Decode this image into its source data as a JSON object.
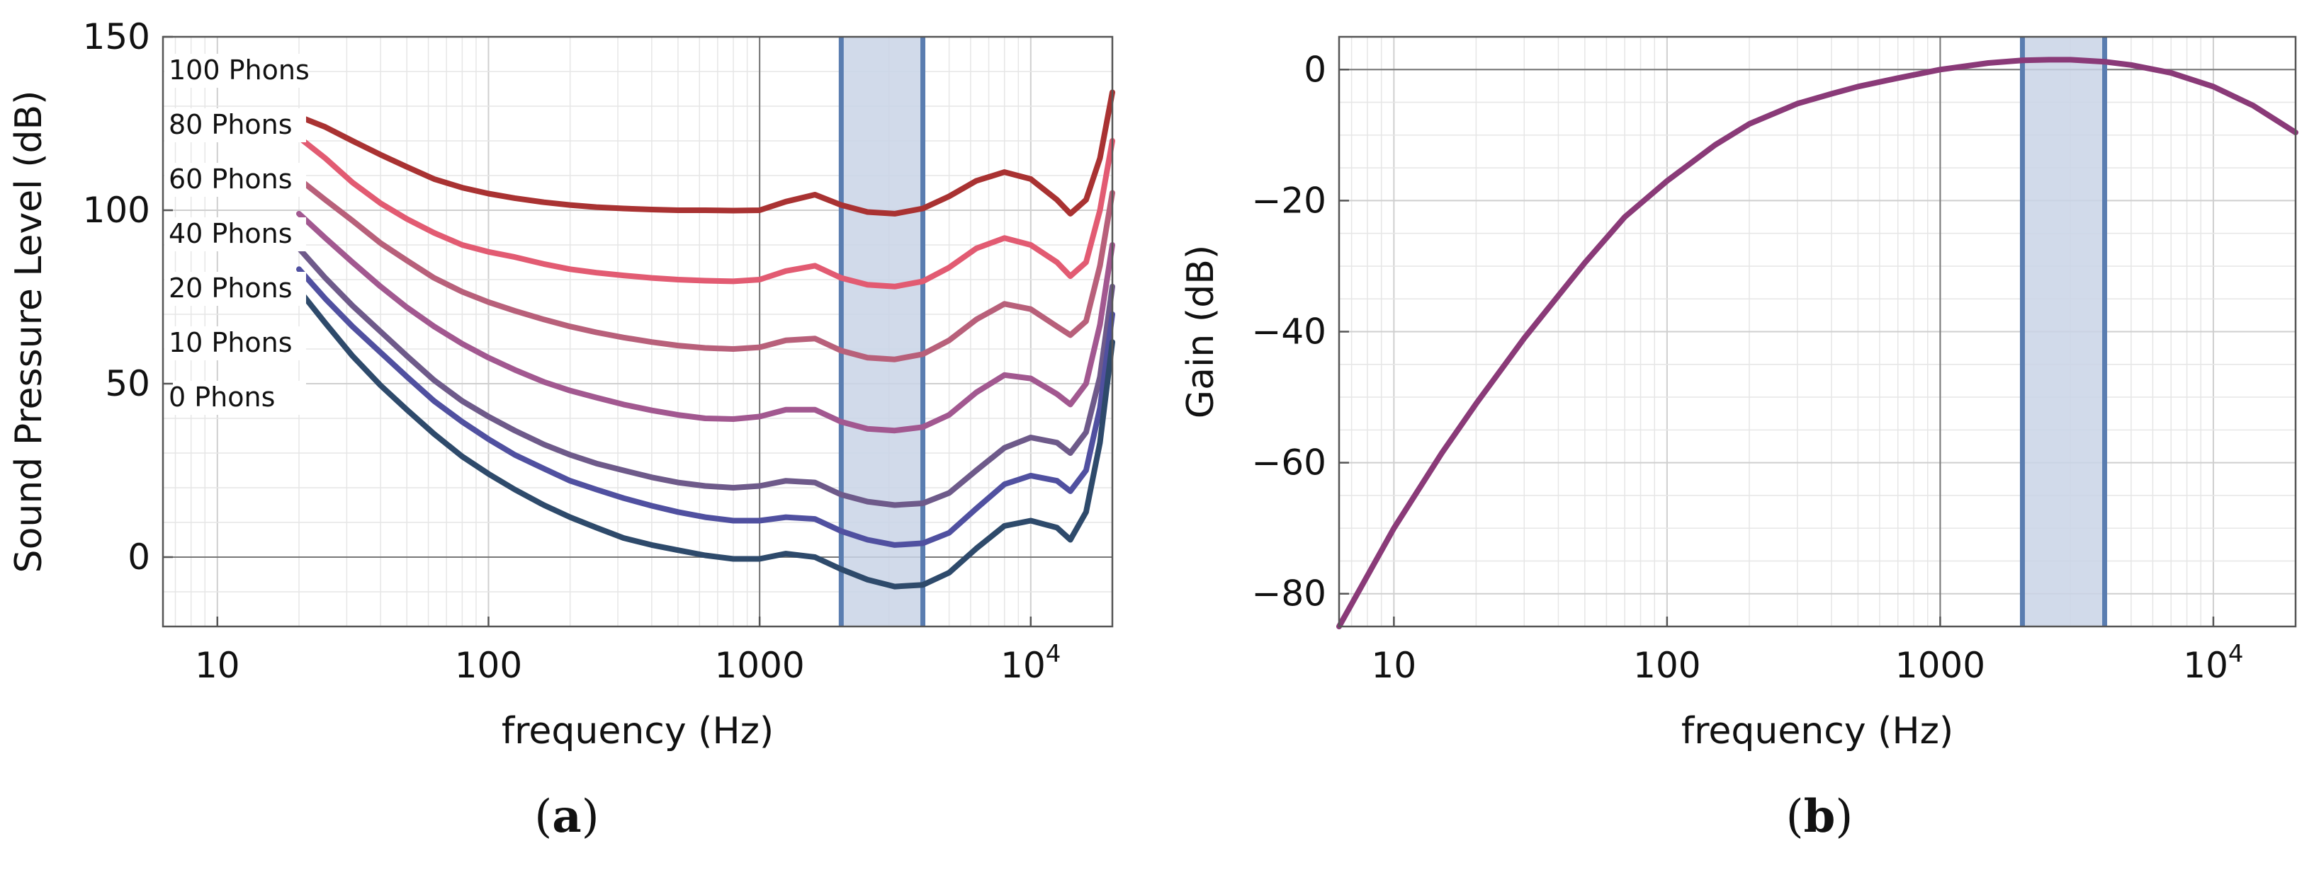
{
  "chart_data": [
    {
      "type": "line",
      "panel_label": "(a)",
      "xlabel": "frequency (Hz)",
      "ylabel": "Sound Pressure Level (dB)",
      "xscale": "log",
      "xlim": [
        6.3,
        20000
      ],
      "ylim": [
        -20,
        150
      ],
      "grid": true,
      "x_ticks": [
        {
          "value": 10,
          "label": "10"
        },
        {
          "value": 100,
          "label": "100"
        },
        {
          "value": 1000,
          "label": "1000"
        },
        {
          "value": 10000,
          "label": "10",
          "sup": "4"
        }
      ],
      "y_ticks": [
        {
          "value": 0,
          "label": "0"
        },
        {
          "value": 50,
          "label": "50"
        },
        {
          "value": 100,
          "label": "100"
        },
        {
          "value": 150,
          "label": "150"
        }
      ],
      "shaded_band": {
        "x_from": 2000,
        "x_to": 4000,
        "fill": "#c9d3e6",
        "edge": "#5a7db0"
      },
      "x": [
        20,
        25,
        31.5,
        40,
        50,
        63,
        80,
        100,
        125,
        160,
        200,
        250,
        315,
        400,
        500,
        630,
        800,
        1000,
        1250,
        1600,
        2000,
        2500,
        3150,
        4000,
        5000,
        6300,
        8000,
        10000,
        12500,
        14000,
        16000,
        18000,
        20000
      ],
      "series": [
        {
          "name": "100 Phons",
          "color": "#a93232",
          "values": [
            127.0,
            124.0,
            120.0,
            116.0,
            112.5,
            109.0,
            106.5,
            104.8,
            103.5,
            102.3,
            101.5,
            100.9,
            100.5,
            100.2,
            100.0,
            100.0,
            99.9,
            100.0,
            102.5,
            104.5,
            101.5,
            99.5,
            99.0,
            100.5,
            104.0,
            108.5,
            111.0,
            109.0,
            103.0,
            99.0,
            103.0,
            115.0,
            134.0
          ]
        },
        {
          "name": "80 Phons",
          "color": "#e25b72",
          "values": [
            121.0,
            115.0,
            108.0,
            102.0,
            97.5,
            93.5,
            90.0,
            88.0,
            86.5,
            84.5,
            83.0,
            82.0,
            81.2,
            80.5,
            80.0,
            79.7,
            79.5,
            80.0,
            82.5,
            84.0,
            80.5,
            78.5,
            78.0,
            79.5,
            83.5,
            89.0,
            92.0,
            90.0,
            85.0,
            81.0,
            85.0,
            100.0,
            120.0
          ]
        },
        {
          "name": "60 Phons",
          "color": "#b8607a",
          "values": [
            109.0,
            103.0,
            97.0,
            90.5,
            85.5,
            80.5,
            76.5,
            73.5,
            71.0,
            68.5,
            66.5,
            64.8,
            63.3,
            62.0,
            61.0,
            60.3,
            60.0,
            60.5,
            62.5,
            63.0,
            59.5,
            57.5,
            57.0,
            58.5,
            62.5,
            68.5,
            73.0,
            71.5,
            66.5,
            64.0,
            68.0,
            84.0,
            105.0
          ]
        },
        {
          "name": "40 Phons",
          "color": "#a25890",
          "values": [
            99.0,
            92.0,
            85.0,
            78.0,
            72.0,
            66.5,
            61.5,
            57.5,
            54.0,
            50.5,
            48.0,
            46.0,
            44.0,
            42.3,
            41.0,
            40.0,
            39.8,
            40.5,
            42.5,
            42.5,
            39.0,
            37.0,
            36.5,
            37.5,
            41.0,
            47.5,
            52.5,
            51.5,
            47.0,
            44.0,
            50.0,
            67.0,
            90.0
          ]
        },
        {
          "name": "20 Phons",
          "color": "#6e5a8a",
          "values": [
            89.0,
            80.5,
            72.5,
            65.0,
            58.0,
            51.0,
            45.0,
            40.5,
            36.5,
            32.5,
            29.5,
            27.0,
            25.0,
            23.0,
            21.5,
            20.5,
            20.0,
            20.5,
            22.0,
            21.5,
            18.0,
            16.0,
            15.0,
            15.5,
            18.5,
            25.0,
            31.5,
            34.5,
            33.0,
            30.0,
            36.0,
            52.0,
            78.0
          ]
        },
        {
          "name": "10 Phons",
          "color": "#5050a0",
          "values": [
            83.0,
            74.5,
            66.5,
            59.0,
            52.0,
            45.0,
            39.0,
            34.0,
            29.5,
            25.5,
            22.0,
            19.5,
            17.0,
            14.8,
            13.0,
            11.5,
            10.5,
            10.5,
            11.5,
            11.0,
            7.5,
            5.0,
            3.5,
            4.0,
            7.0,
            14.0,
            21.0,
            23.5,
            22.0,
            19.0,
            25.0,
            43.0,
            70.0
          ]
        },
        {
          "name": "0 Phons",
          "color": "#2e4a6b",
          "values": [
            77.0,
            67.5,
            58.0,
            49.5,
            42.5,
            35.5,
            29.0,
            24.0,
            19.5,
            15.0,
            11.5,
            8.5,
            5.5,
            3.5,
            2.0,
            0.5,
            -0.5,
            -0.5,
            1.0,
            0.0,
            -3.5,
            -6.5,
            -8.5,
            -8.0,
            -4.5,
            2.5,
            9.0,
            10.5,
            8.5,
            5.0,
            13.0,
            33.0,
            62.0
          ]
        }
      ]
    },
    {
      "type": "line",
      "panel_label": "(b)",
      "xlabel": "frequency (Hz)",
      "ylabel": "Gain (dB)",
      "xscale": "log",
      "xlim": [
        6.3,
        20000
      ],
      "ylim": [
        -85,
        5
      ],
      "grid": true,
      "x_ticks": [
        {
          "value": 10,
          "label": "10"
        },
        {
          "value": 100,
          "label": "100"
        },
        {
          "value": 1000,
          "label": "1000"
        },
        {
          "value": 10000,
          "label": "10",
          "sup": "4"
        }
      ],
      "y_ticks": [
        {
          "value": 0,
          "label": "0"
        },
        {
          "value": -20,
          "label": "−20"
        },
        {
          "value": -40,
          "label": "−40"
        },
        {
          "value": -60,
          "label": "−60"
        },
        {
          "value": -80,
          "label": "−80"
        }
      ],
      "shaded_band": {
        "x_from": 2000,
        "x_to": 4000,
        "fill": "#c9d3e6",
        "edge": "#5a7db0"
      },
      "series": [
        {
          "name": "Gain",
          "color": "#8a3a78",
          "x": [
            6.3,
            10,
            15,
            20,
            30,
            40,
            50,
            70,
            100,
            150,
            200,
            300,
            400,
            500,
            700,
            1000,
            1500,
            2000,
            2500,
            3000,
            4000,
            5000,
            7000,
            10000,
            14000,
            20000
          ],
          "values": [
            -85,
            -70,
            -58.5,
            -51,
            -41,
            -34.5,
            -29.5,
            -22.5,
            -17,
            -11.5,
            -8.3,
            -5.2,
            -3.7,
            -2.6,
            -1.3,
            0,
            1.0,
            1.4,
            1.5,
            1.5,
            1.2,
            0.7,
            -0.5,
            -2.6,
            -5.5,
            -9.6
          ]
        }
      ]
    }
  ]
}
